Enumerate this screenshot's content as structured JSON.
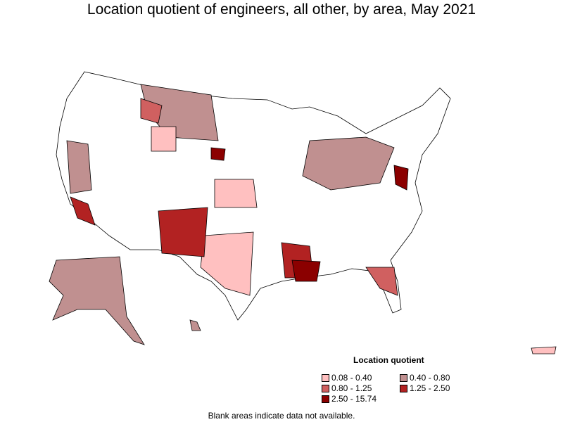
{
  "title": "Location quotient of engineers, all other, by area, May 2021",
  "legend": {
    "title": "Location quotient",
    "items": [
      {
        "label": "0.08 - 0.40",
        "color": "#FFC0C0"
      },
      {
        "label": "0.40 - 0.80",
        "color": "#C09090"
      },
      {
        "label": "0.80 - 1.25",
        "color": "#D06060"
      },
      {
        "label": "1.25 - 2.50",
        "color": "#B22222"
      },
      {
        "label": "2.50 - 15.74",
        "color": "#8B0000"
      }
    ]
  },
  "note": "Blank areas indicate data not available."
}
